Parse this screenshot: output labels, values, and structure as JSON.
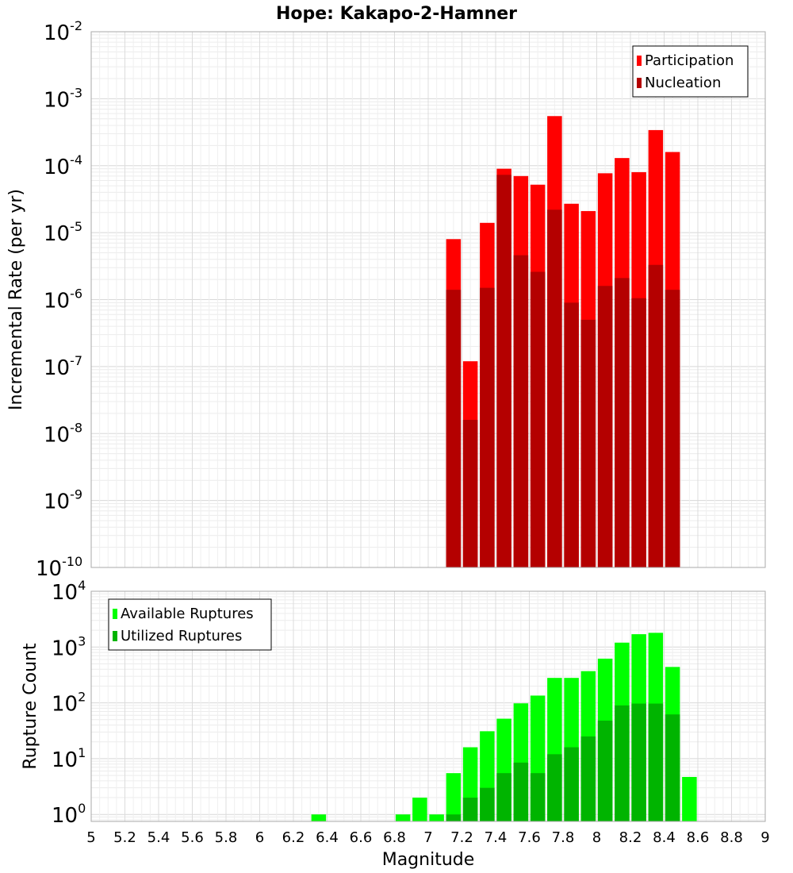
{
  "chart_data": [
    {
      "type": "bar",
      "title": "Hope: Kakapo-2-Hamner",
      "xlabel": "Magnitude",
      "ylabel": "Incremental Rate (per yr)",
      "yscale": "log",
      "ylim": [
        1e-10,
        0.01
      ],
      "xlim": [
        5,
        9
      ],
      "grid": true,
      "legend_position": "top-right",
      "y_ticks": [
        {
          "base": "10",
          "exp": "-10"
        },
        {
          "base": "10",
          "exp": "-9"
        },
        {
          "base": "10",
          "exp": "-8"
        },
        {
          "base": "10",
          "exp": "-7"
        },
        {
          "base": "10",
          "exp": "-6"
        },
        {
          "base": "10",
          "exp": "-5"
        },
        {
          "base": "10",
          "exp": "-4"
        },
        {
          "base": "10",
          "exp": "-3"
        },
        {
          "base": "10",
          "exp": "-2"
        }
      ],
      "x": [
        7.15,
        7.25,
        7.35,
        7.45,
        7.55,
        7.65,
        7.75,
        7.85,
        7.95,
        8.05,
        8.15,
        8.25,
        8.35,
        8.45
      ],
      "series": [
        {
          "name": "Participation",
          "color": "#ff0000",
          "values": [
            8e-06,
            1.2e-07,
            1.4e-05,
            9e-05,
            7e-05,
            5.2e-05,
            0.00055,
            2.7e-05,
            2.1e-05,
            7.7e-05,
            0.00013,
            8e-05,
            0.00034,
            0.00016
          ]
        },
        {
          "name": "Nucleation",
          "color": "#b40000",
          "values": [
            1.4e-06,
            1.6e-08,
            1.5e-06,
            7.3e-05,
            4.6e-06,
            2.6e-06,
            2.2e-05,
            9e-07,
            5e-07,
            1.6e-06,
            2.1e-06,
            1.05e-06,
            3.3e-06,
            1.4e-06
          ]
        }
      ]
    },
    {
      "type": "bar",
      "xlabel": "Magnitude",
      "ylabel": "Rupture Count",
      "yscale": "log",
      "ylim": [
        0.75,
        10000.0
      ],
      "xlim": [
        5,
        9
      ],
      "grid": true,
      "legend_position": "top-left",
      "y_ticks": [
        {
          "base": "10",
          "exp": "0"
        },
        {
          "base": "10",
          "exp": "1"
        },
        {
          "base": "10",
          "exp": "2"
        },
        {
          "base": "10",
          "exp": "3"
        },
        {
          "base": "10",
          "exp": "4"
        }
      ],
      "x_ticks": [
        "5",
        "5.2",
        "5.4",
        "5.6",
        "5.8",
        "6",
        "6.2",
        "6.4",
        "6.6",
        "6.8",
        "7",
        "7.2",
        "7.4",
        "7.6",
        "7.8",
        "8",
        "8.2",
        "8.4",
        "8.6",
        "8.8",
        "9"
      ],
      "series": [
        {
          "name": "Available Ruptures",
          "color": "#00ff00",
          "x": [
            6.35,
            6.85,
            6.95,
            7.05,
            7.15,
            7.25,
            7.35,
            7.45,
            7.55,
            7.65,
            7.75,
            7.85,
            7.95,
            8.05,
            8.15,
            8.25,
            8.35,
            8.45,
            8.55
          ],
          "values": [
            1,
            1,
            2,
            1,
            5.5,
            16,
            31,
            52,
            98,
            135,
            280,
            280,
            370,
            620,
            1200,
            1700,
            1800,
            440,
            4.7
          ]
        },
        {
          "name": "Utilized Ruptures",
          "color": "#00b400",
          "x": [
            7.15,
            7.25,
            7.35,
            7.45,
            7.55,
            7.65,
            7.75,
            7.85,
            7.95,
            8.05,
            8.15,
            8.25,
            8.35,
            8.45
          ],
          "values": [
            1,
            2,
            3,
            5.5,
            8.5,
            5.5,
            12,
            16,
            25,
            48,
            90,
            97,
            97,
            62
          ]
        }
      ]
    }
  ]
}
